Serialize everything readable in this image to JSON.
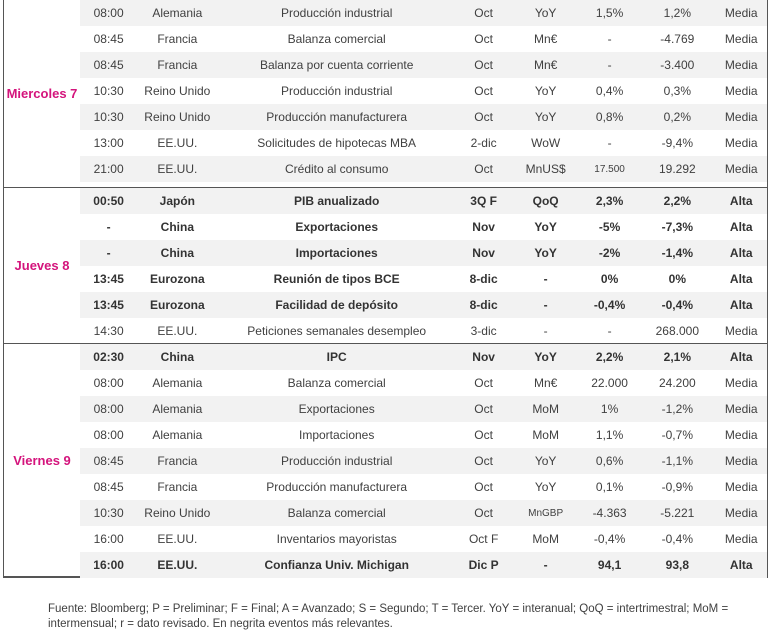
{
  "days": [
    {
      "label": "Miercoles 7",
      "rows": [
        {
          "time": "08:00",
          "country": "Alemania",
          "event": "Producción industrial",
          "period": "Oct",
          "unit": "YoY",
          "estimate": "1,5%",
          "previous": "1,2%",
          "importance": "Media",
          "bold": false
        },
        {
          "time": "08:45",
          "country": "Francia",
          "event": "Balanza comercial",
          "period": "Oct",
          "unit": "Mn€",
          "estimate": "-",
          "previous": "-4.769",
          "importance": "Media",
          "bold": false
        },
        {
          "time": "08:45",
          "country": "Francia",
          "event": "Balanza por cuenta corriente",
          "period": "Oct",
          "unit": "Mn€",
          "estimate": "-",
          "previous": "-3.400",
          "importance": "Media",
          "bold": false
        },
        {
          "time": "10:30",
          "country": "Reino Unido",
          "event": "Producción industrial",
          "period": "Oct",
          "unit": "YoY",
          "estimate": "0,4%",
          "previous": "0,3%",
          "importance": "Media",
          "bold": false
        },
        {
          "time": "10:30",
          "country": "Reino Unido",
          "event": "Producción manufacturera",
          "period": "Oct",
          "unit": "YoY",
          "estimate": "0,8%",
          "previous": "0,2%",
          "importance": "Media",
          "bold": false
        },
        {
          "time": "13:00",
          "country": "EE.UU.",
          "event": "Solicitudes de hipotecas MBA",
          "period": "2-dic",
          "unit": "WoW",
          "estimate": "-",
          "previous": "-9,4%",
          "importance": "Media",
          "bold": false
        },
        {
          "time": "21:00",
          "country": "EE.UU.",
          "event": "Crédito al consumo",
          "period": "Oct",
          "unit": "MnUS$",
          "estimate": "17.500",
          "previous": "19.292",
          "importance": "Media",
          "bold": false
        }
      ]
    },
    {
      "label": "Jueves 8",
      "rows": [
        {
          "time": "00:50",
          "country": "Japón",
          "event": "PIB anualizado",
          "period": "3Q F",
          "unit": "QoQ",
          "estimate": "2,3%",
          "previous": "2,2%",
          "importance": "Alta",
          "bold": true
        },
        {
          "time": "-",
          "country": "China",
          "event": "Exportaciones",
          "period": "Nov",
          "unit": "YoY",
          "estimate": "-5%",
          "previous": "-7,3%",
          "importance": "Alta",
          "bold": true
        },
        {
          "time": "-",
          "country": "China",
          "event": "Importaciones",
          "period": "Nov",
          "unit": "YoY",
          "estimate": "-2%",
          "previous": "-1,4%",
          "importance": "Alta",
          "bold": true
        },
        {
          "time": "13:45",
          "country": "Eurozona",
          "event": "Reunión de tipos BCE",
          "period": "8-dic",
          "unit": "-",
          "estimate": "0%",
          "previous": "0%",
          "importance": "Alta",
          "bold": true
        },
        {
          "time": "13:45",
          "country": "Eurozona",
          "event": "Facilidad de depósito",
          "period": "8-dic",
          "unit": "-",
          "estimate": "-0,4%",
          "previous": "-0,4%",
          "importance": "Alta",
          "bold": true
        },
        {
          "time": "14:30",
          "country": "EE.UU.",
          "event": "Peticiones semanales desempleo",
          "period": "3-dic",
          "unit": "-",
          "estimate": "-",
          "previous": "268.000",
          "importance": "Media",
          "bold": false
        }
      ]
    },
    {
      "label": "Viernes 9",
      "rows": [
        {
          "time": "02:30",
          "country": "China",
          "event": "IPC",
          "period": "Nov",
          "unit": "YoY",
          "estimate": "2,2%",
          "previous": "2,1%",
          "importance": "Alta",
          "bold": true
        },
        {
          "time": "08:00",
          "country": "Alemania",
          "event": "Balanza comercial",
          "period": "Oct",
          "unit": "Mn€",
          "estimate": "22.000",
          "previous": "24.200",
          "importance": "Media",
          "bold": false
        },
        {
          "time": "08:00",
          "country": "Alemania",
          "event": "Exportaciones",
          "period": "Oct",
          "unit": "MoM",
          "estimate": "1%",
          "previous": "-1,2%",
          "importance": "Media",
          "bold": false
        },
        {
          "time": "08:00",
          "country": "Alemania",
          "event": "Importaciones",
          "period": "Oct",
          "unit": "MoM",
          "estimate": "1,1%",
          "previous": "-0,7%",
          "importance": "Media",
          "bold": false
        },
        {
          "time": "08:45",
          "country": "Francia",
          "event": "Producción industrial",
          "period": "Oct",
          "unit": "YoY",
          "estimate": "0,6%",
          "previous": "-1,1%",
          "importance": "Media",
          "bold": false
        },
        {
          "time": "08:45",
          "country": "Francia",
          "event": "Producción manufacturera",
          "period": "Oct",
          "unit": "YoY",
          "estimate": "0,1%",
          "previous": "-0,9%",
          "importance": "Media",
          "bold": false
        },
        {
          "time": "10:30",
          "country": "Reino Unido",
          "event": "Balanza comercial",
          "period": "Oct",
          "unit": "MnGBP",
          "estimate": "-4.363",
          "previous": "-5.221",
          "importance": "Media",
          "bold": false
        },
        {
          "time": "16:00",
          "country": "EE.UU.",
          "event": "Inventarios mayoristas",
          "period": "Oct F",
          "unit": "MoM",
          "estimate": "-0,4%",
          "previous": "-0,4%",
          "importance": "Media",
          "bold": false
        },
        {
          "time": "16:00",
          "country": "EE.UU.",
          "event": "Confianza Univ. Michigan",
          "period": "Dic P",
          "unit": "-",
          "estimate": "94,1",
          "previous": "93,8",
          "importance": "Alta",
          "bold": true
        }
      ]
    }
  ],
  "footnote": "Fuente: Bloomberg; P = Preliminar; F = Final; A = Avanzado; S = Segundo; T = Tercer.  YoY = interanual; QoQ = intertrimestral; MoM = intermensual; r = dato revisado. En negrita eventos más relevantes.",
  "colors": {
    "day_label": "#d4147c",
    "row_shade": "#f2f2f2",
    "border": "#555555"
  }
}
